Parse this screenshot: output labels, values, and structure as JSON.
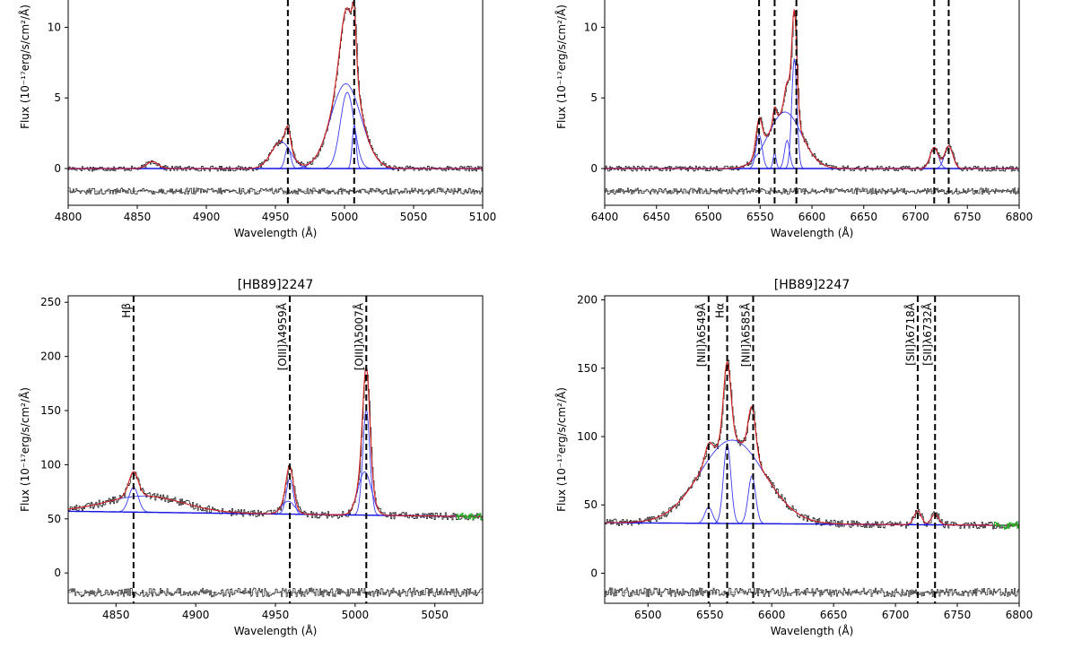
{
  "chart_data": [
    {
      "type": "line",
      "panel": "top-left",
      "title": "",
      "xlabel": "Wavelength (Å)",
      "ylabel": "Flux (10⁻¹⁷erg/s/cm²/Å)",
      "xlim": [
        4800,
        5100
      ],
      "ylim": [
        -2.6,
        13.2
      ],
      "xticks": [
        4800,
        4850,
        4900,
        4950,
        5000,
        5050,
        5100
      ],
      "yticks": [
        0,
        5,
        10
      ],
      "vlines": [
        4959,
        5007
      ],
      "line_labels": [],
      "continuum": [
        [
          4800,
          0
        ],
        [
          5100,
          0
        ]
      ],
      "components": [
        {
          "type": "narrow",
          "center": 4861,
          "amplitude": 0.5,
          "sigma": 4
        },
        {
          "type": "broad",
          "center": 4954,
          "amplitude": 1.9,
          "sigma": 7
        },
        {
          "type": "broad",
          "center": 5001,
          "amplitude": 6.0,
          "sigma": 11
        },
        {
          "type": "narrow",
          "center": 5002,
          "amplitude": 5.4,
          "sigma": 5
        },
        {
          "type": "narrow",
          "center": 4959,
          "amplitude": 1.5,
          "sigma": 2
        },
        {
          "type": "narrow",
          "center": 5007,
          "amplitude": 3.1,
          "sigma": 1.4
        }
      ],
      "residual_offset": -1.6,
      "residual_band": [
        4800,
        5100
      ]
    },
    {
      "type": "line",
      "panel": "top-right",
      "title": "",
      "xlabel": "Wavelength (Å)",
      "ylabel": "Flux (10⁻¹⁷erg/s/cm²/Å)",
      "xlim": [
        6400,
        6800
      ],
      "ylim": [
        -2.6,
        13.2
      ],
      "xticks": [
        6400,
        6450,
        6500,
        6550,
        6600,
        6650,
        6700,
        6750,
        6800
      ],
      "yticks": [
        0,
        5,
        10
      ],
      "vlines": [
        6549,
        6564,
        6585,
        6718,
        6732
      ],
      "line_labels": [],
      "continuum": [
        [
          6400,
          0
        ],
        [
          6800,
          0
        ]
      ],
      "components": [
        {
          "type": "broad",
          "center": 6574,
          "amplitude": 4.0,
          "sigma": 16
        },
        {
          "type": "narrow",
          "center": 6549,
          "amplitude": 2.4,
          "sigma": 3
        },
        {
          "type": "narrow",
          "center": 6564,
          "amplitude": 1.1,
          "sigma": 1.5
        },
        {
          "type": "narrow",
          "center": 6576,
          "amplitude": 2.0,
          "sigma": 2.5
        },
        {
          "type": "narrow",
          "center": 6583,
          "amplitude": 7.8,
          "sigma": 2.5
        },
        {
          "type": "narrow",
          "center": 6718,
          "amplitude": 1.5,
          "sigma": 4
        },
        {
          "type": "narrow",
          "center": 6732,
          "amplitude": 1.6,
          "sigma": 4
        }
      ],
      "residual_offset": -1.6,
      "residual_band": [
        6400,
        6800
      ]
    },
    {
      "type": "line",
      "panel": "bottom-left",
      "title": "[HB89]2247",
      "xlabel": "Wavelength (Å)",
      "ylabel": "Flux (10⁻¹⁷erg/s/cm²/Å)",
      "xlim": [
        4820,
        5080
      ],
      "ylim": [
        -28,
        256
      ],
      "xticks": [
        4850,
        4900,
        4950,
        5000,
        5050
      ],
      "yticks": [
        0,
        50,
        100,
        150,
        200,
        250
      ],
      "vlines": [
        4861,
        4959,
        5007
      ],
      "line_labels": [
        "Hβ",
        "[OIII]λ4959Å",
        "[OIII]λ5007Å"
      ],
      "continuum": [
        [
          4820,
          57
        ],
        [
          5080,
          52
        ]
      ],
      "components": [
        {
          "type": "broad",
          "center": 4868,
          "amplitude": 15,
          "sigma": 24
        },
        {
          "type": "narrow",
          "center": 4861,
          "amplitude": 23,
          "sigma": 3
        },
        {
          "type": "narrow",
          "center": 4959,
          "amplitude": 33,
          "sigma": 2.2
        },
        {
          "type": "broad",
          "center": 4958,
          "amplitude": 12,
          "sigma": 4
        },
        {
          "type": "narrow",
          "center": 5007,
          "amplitude": 98,
          "sigma": 2.2
        },
        {
          "type": "broad",
          "center": 5006,
          "amplitude": 40,
          "sigma": 4.2
        }
      ],
      "residual_offset": -18,
      "residual_band": [
        4820,
        5080
      ]
    },
    {
      "type": "line",
      "panel": "bottom-right",
      "title": "[HB89]2247",
      "xlabel": "Wavelength (Å)",
      "ylabel": "Flux (10⁻¹⁷erg/s/cm²/Å)",
      "xlim": [
        6465,
        6800
      ],
      "ylim": [
        -22,
        203
      ],
      "xticks": [
        6500,
        6550,
        6600,
        6650,
        6700,
        6750,
        6800
      ],
      "yticks": [
        0,
        50,
        100,
        150,
        200
      ],
      "vlines": [
        6549,
        6564,
        6585,
        6718,
        6732
      ],
      "line_labels": [
        "[NII]λ6549Å",
        "Hα",
        "[NII]λ6585Å",
        "[SII]λ6718Å",
        "[SII]λ6732Å"
      ],
      "continuum": [
        [
          6465,
          37
        ],
        [
          6800,
          35
        ]
      ],
      "components": [
        {
          "type": "broad",
          "center": 6568,
          "amplitude": 61,
          "sigma": 26
        },
        {
          "type": "narrow",
          "center": 6549,
          "amplitude": 12,
          "sigma": 3
        },
        {
          "type": "narrow",
          "center": 6564,
          "amplitude": 58,
          "sigma": 3
        },
        {
          "type": "narrow",
          "center": 6584,
          "amplitude": 35,
          "sigma": 3
        },
        {
          "type": "narrow",
          "center": 6718,
          "amplitude": 10,
          "sigma": 3
        },
        {
          "type": "narrow",
          "center": 6732,
          "amplitude": 8,
          "sigma": 3
        }
      ],
      "residual_offset": -14,
      "residual_band": [
        6465,
        6800
      ]
    }
  ]
}
